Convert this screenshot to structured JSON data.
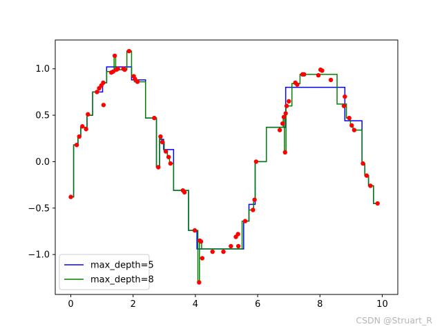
{
  "chart_data": {
    "type": "line",
    "title": "",
    "xlabel": "",
    "ylabel": "",
    "xlim": [
      -0.5,
      10.5
    ],
    "ylim": [
      -1.43,
      1.31
    ],
    "xticks": [
      0,
      2,
      4,
      6,
      8,
      10
    ],
    "xtick_labels": [
      "0",
      "2",
      "4",
      "6",
      "8",
      "10"
    ],
    "yticks": [
      -1.0,
      -0.5,
      0.0,
      0.5,
      1.0
    ],
    "ytick_labels": [
      "−1.0",
      "−0.5",
      "0.0",
      "0.5",
      "1.0"
    ],
    "grid": false,
    "legend_position": "lower-left",
    "scatter": {
      "color": "#ff0000",
      "points": [
        [
          0.0,
          -0.38
        ],
        [
          0.19,
          0.18
        ],
        [
          0.27,
          0.27
        ],
        [
          0.37,
          0.38
        ],
        [
          0.49,
          0.35
        ],
        [
          0.55,
          0.51
        ],
        [
          0.84,
          0.75
        ],
        [
          0.91,
          0.79
        ],
        [
          0.98,
          0.82
        ],
        [
          1.04,
          0.85
        ],
        [
          1.05,
          0.61
        ],
        [
          1.3,
          0.96
        ],
        [
          1.36,
          0.97
        ],
        [
          1.41,
          1.14
        ],
        [
          1.46,
          0.99
        ],
        [
          1.51,
          1.0
        ],
        [
          1.69,
          1.0
        ],
        [
          1.73,
          0.99
        ],
        [
          1.87,
          1.19
        ],
        [
          2.02,
          0.92
        ],
        [
          2.06,
          0.89
        ],
        [
          2.14,
          0.86
        ],
        [
          2.68,
          0.47
        ],
        [
          2.81,
          -0.06
        ],
        [
          2.88,
          0.27
        ],
        [
          2.94,
          0.21
        ],
        [
          3.05,
          0.11
        ],
        [
          3.14,
          0.05
        ],
        [
          3.2,
          -0.02
        ],
        [
          3.6,
          -0.31
        ],
        [
          3.65,
          -0.33
        ],
        [
          3.98,
          -0.74
        ],
        [
          4.12,
          -1.3
        ],
        [
          4.14,
          -0.85
        ],
        [
          4.18,
          -0.86
        ],
        [
          4.22,
          -1.04
        ],
        [
          4.55,
          -0.97
        ],
        [
          4.9,
          -0.97
        ],
        [
          5.14,
          -0.91
        ],
        [
          5.3,
          -0.81
        ],
        [
          5.37,
          -0.78
        ],
        [
          5.38,
          -0.91
        ],
        [
          5.6,
          -0.64
        ],
        [
          5.85,
          -0.52
        ],
        [
          5.9,
          -0.41
        ],
        [
          5.95,
          0.0
        ],
        [
          6.71,
          0.34
        ],
        [
          6.8,
          0.41
        ],
        [
          6.84,
          0.48
        ],
        [
          6.9,
          0.52
        ],
        [
          6.93,
          0.6
        ],
        [
          6.88,
          0.1
        ],
        [
          7.0,
          0.65
        ],
        [
          7.21,
          0.85
        ],
        [
          7.27,
          0.83
        ],
        [
          7.44,
          0.94
        ],
        [
          7.49,
          0.94
        ],
        [
          7.95,
          0.93
        ],
        [
          8.02,
          0.99
        ],
        [
          8.07,
          0.98
        ],
        [
          8.35,
          0.88
        ],
        [
          8.77,
          0.6
        ],
        [
          8.8,
          0.7
        ],
        [
          8.94,
          0.47
        ],
        [
          9.02,
          0.39
        ],
        [
          9.1,
          0.34
        ],
        [
          9.38,
          -0.02
        ],
        [
          9.5,
          -0.15
        ],
        [
          9.62,
          -0.26
        ],
        [
          9.85,
          -0.45
        ]
      ]
    },
    "series": [
      {
        "name": "max_depth=5",
        "color": "#0000ff",
        "step_points": [
          [
            0.0,
            -0.38
          ],
          [
            0.09,
            -0.38
          ],
          [
            0.09,
            0.18
          ],
          [
            0.23,
            0.18
          ],
          [
            0.23,
            0.27
          ],
          [
            0.32,
            0.27
          ],
          [
            0.32,
            0.37
          ],
          [
            0.52,
            0.37
          ],
          [
            0.52,
            0.5
          ],
          [
            0.7,
            0.5
          ],
          [
            0.7,
            0.75
          ],
          [
            1.02,
            0.75
          ],
          [
            1.02,
            0.85
          ],
          [
            1.15,
            0.85
          ],
          [
            1.15,
            1.02
          ],
          [
            1.95,
            1.02
          ],
          [
            1.95,
            0.88
          ],
          [
            2.4,
            0.88
          ],
          [
            2.4,
            0.47
          ],
          [
            2.75,
            0.47
          ],
          [
            2.75,
            -0.06
          ],
          [
            2.85,
            -0.06
          ],
          [
            2.85,
            0.24
          ],
          [
            2.98,
            0.24
          ],
          [
            2.98,
            0.13
          ],
          [
            3.3,
            0.13
          ],
          [
            3.3,
            -0.31
          ],
          [
            3.78,
            -0.31
          ],
          [
            3.78,
            -0.74
          ],
          [
            4.05,
            -0.74
          ],
          [
            4.05,
            -0.94
          ],
          [
            5.55,
            -0.94
          ],
          [
            5.55,
            -0.64
          ],
          [
            5.72,
            -0.64
          ],
          [
            5.72,
            -0.46
          ],
          [
            5.92,
            -0.46
          ],
          [
            5.92,
            0.0
          ],
          [
            6.28,
            0.0
          ],
          [
            6.28,
            0.37
          ],
          [
            6.9,
            0.37
          ],
          [
            6.9,
            0.8
          ],
          [
            8.8,
            0.8
          ],
          [
            8.8,
            0.44
          ],
          [
            9.35,
            0.44
          ],
          [
            9.35,
            -0.02
          ],
          [
            9.44,
            -0.02
          ],
          [
            9.44,
            -0.15
          ],
          [
            9.56,
            -0.15
          ],
          [
            9.56,
            -0.26
          ],
          [
            9.72,
            -0.26
          ],
          [
            9.72,
            -0.45
          ],
          [
            9.9,
            -0.45
          ]
        ]
      },
      {
        "name": "max_depth=8",
        "color": "#008000",
        "step_points": [
          [
            0.0,
            -0.38
          ],
          [
            0.09,
            -0.38
          ],
          [
            0.09,
            0.18
          ],
          [
            0.23,
            0.18
          ],
          [
            0.23,
            0.27
          ],
          [
            0.32,
            0.27
          ],
          [
            0.32,
            0.37
          ],
          [
            0.52,
            0.37
          ],
          [
            0.52,
            0.5
          ],
          [
            0.7,
            0.5
          ],
          [
            0.7,
            0.75
          ],
          [
            0.88,
            0.75
          ],
          [
            0.88,
            0.79
          ],
          [
            0.95,
            0.79
          ],
          [
            0.95,
            0.82
          ],
          [
            1.02,
            0.82
          ],
          [
            1.02,
            0.85
          ],
          [
            1.15,
            0.85
          ],
          [
            1.15,
            0.97
          ],
          [
            1.39,
            0.97
          ],
          [
            1.39,
            1.14
          ],
          [
            1.44,
            1.14
          ],
          [
            1.44,
            0.99
          ],
          [
            1.8,
            0.99
          ],
          [
            1.8,
            1.19
          ],
          [
            1.95,
            1.19
          ],
          [
            1.95,
            0.92
          ],
          [
            2.04,
            0.92
          ],
          [
            2.04,
            0.86
          ],
          [
            2.4,
            0.86
          ],
          [
            2.4,
            0.47
          ],
          [
            2.75,
            0.47
          ],
          [
            2.75,
            -0.06
          ],
          [
            2.85,
            -0.06
          ],
          [
            2.85,
            0.27
          ],
          [
            2.91,
            0.27
          ],
          [
            2.91,
            0.21
          ],
          [
            3.0,
            0.21
          ],
          [
            3.0,
            0.11
          ],
          [
            3.1,
            0.11
          ],
          [
            3.1,
            0.05
          ],
          [
            3.17,
            0.05
          ],
          [
            3.17,
            -0.02
          ],
          [
            3.3,
            -0.02
          ],
          [
            3.3,
            -0.31
          ],
          [
            3.78,
            -0.31
          ],
          [
            3.78,
            -0.74
          ],
          [
            4.08,
            -0.74
          ],
          [
            4.08,
            -1.3
          ],
          [
            4.13,
            -1.3
          ],
          [
            4.13,
            -0.86
          ],
          [
            4.2,
            -0.86
          ],
          [
            4.2,
            -0.94
          ],
          [
            5.5,
            -0.94
          ],
          [
            5.5,
            -0.64
          ],
          [
            5.72,
            -0.64
          ],
          [
            5.72,
            -0.52
          ],
          [
            5.87,
            -0.52
          ],
          [
            5.87,
            -0.41
          ],
          [
            5.92,
            -0.41
          ],
          [
            5.92,
            0.0
          ],
          [
            6.28,
            0.0
          ],
          [
            6.28,
            0.37
          ],
          [
            6.82,
            0.37
          ],
          [
            6.82,
            0.48
          ],
          [
            6.86,
            0.48
          ],
          [
            6.86,
            0.1
          ],
          [
            6.91,
            0.1
          ],
          [
            6.91,
            0.6
          ],
          [
            7.1,
            0.6
          ],
          [
            7.1,
            0.84
          ],
          [
            7.36,
            0.84
          ],
          [
            7.36,
            0.94
          ],
          [
            8.55,
            0.94
          ],
          [
            8.55,
            0.62
          ],
          [
            8.85,
            0.62
          ],
          [
            8.85,
            0.47
          ],
          [
            8.98,
            0.47
          ],
          [
            8.98,
            0.38
          ],
          [
            9.06,
            0.38
          ],
          [
            9.06,
            0.34
          ],
          [
            9.35,
            0.34
          ],
          [
            9.35,
            -0.02
          ],
          [
            9.44,
            -0.02
          ],
          [
            9.44,
            -0.15
          ],
          [
            9.56,
            -0.15
          ],
          [
            9.56,
            -0.26
          ],
          [
            9.72,
            -0.26
          ],
          [
            9.72,
            -0.45
          ],
          [
            9.9,
            -0.45
          ]
        ]
      }
    ]
  },
  "watermark": "CSDN @Struart_R"
}
